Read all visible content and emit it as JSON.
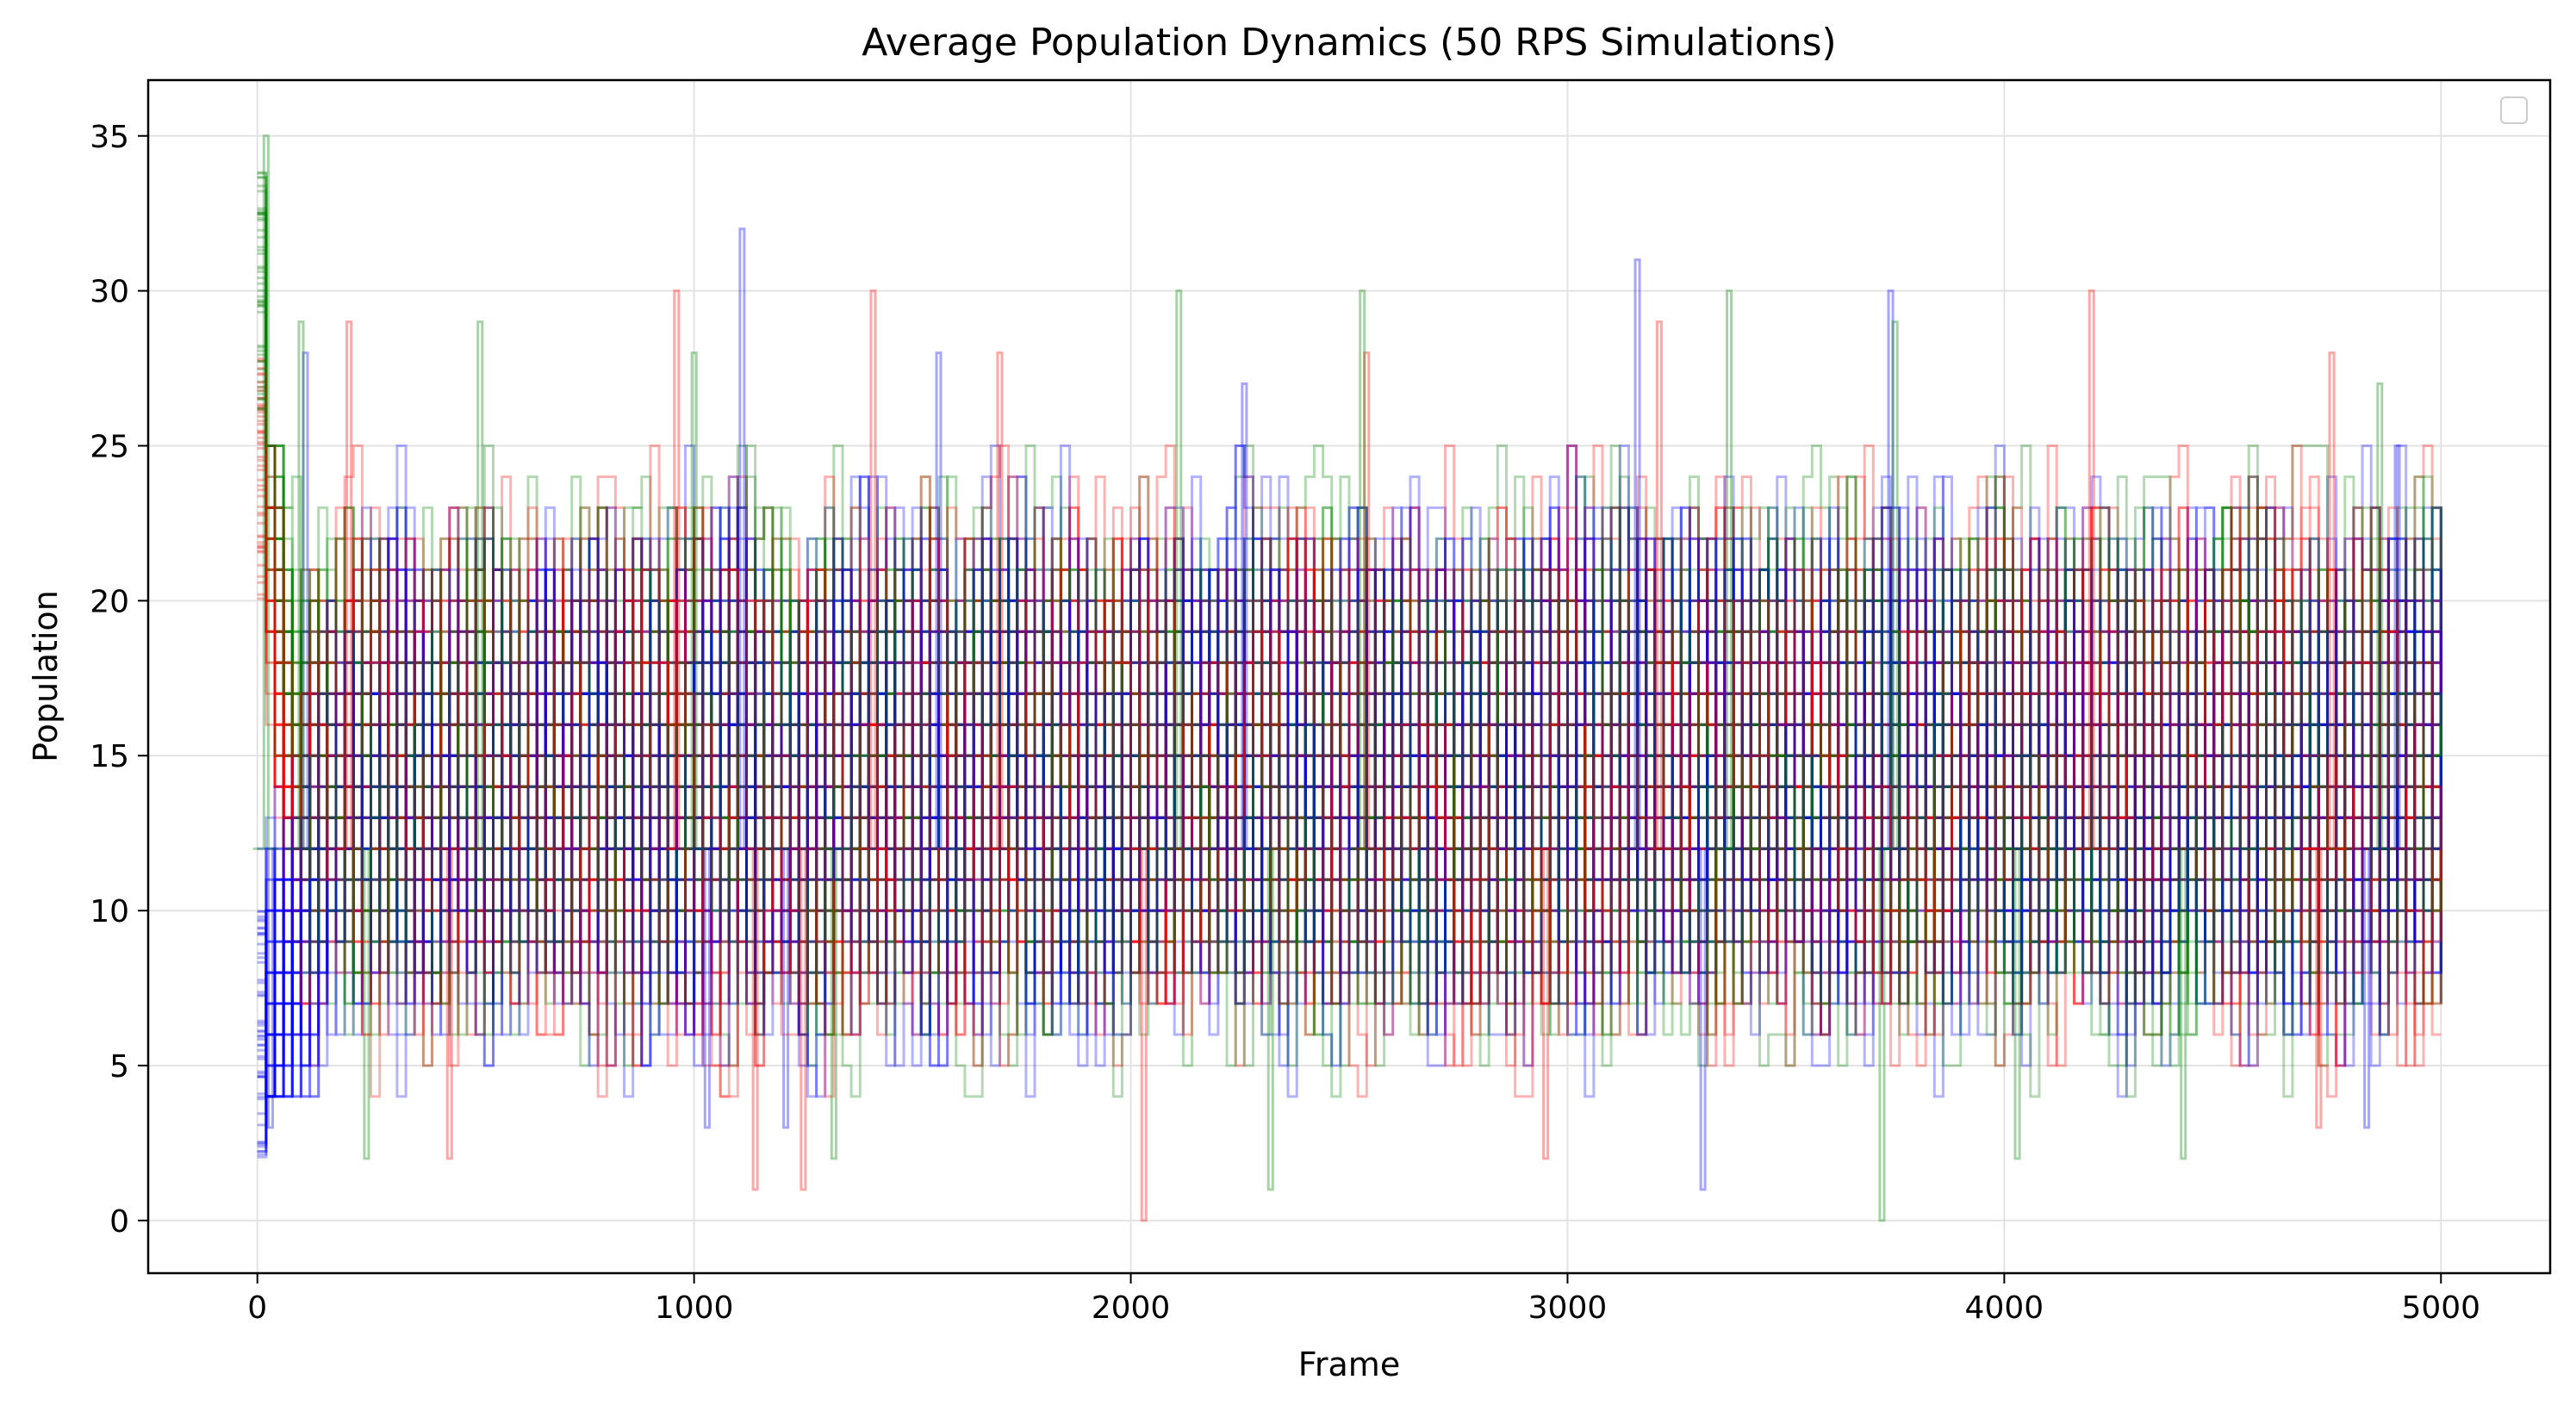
{
  "chart_data": {
    "type": "line",
    "title": "Average Population Dynamics (50 RPS Simulations)",
    "xlabel": "Frame",
    "ylabel": "Population",
    "xlim": [
      -250,
      5250
    ],
    "ylim": [
      -1.7,
      36.8
    ],
    "x_ticks": [
      0,
      1000,
      2000,
      3000,
      4000,
      5000
    ],
    "x_tick_labels": [
      "0",
      "1000",
      "2000",
      "3000",
      "4000",
      "5000"
    ],
    "y_ticks": [
      0,
      5,
      10,
      15,
      20,
      25,
      30,
      35
    ],
    "y_tick_labels": [
      "0",
      "5",
      "10",
      "15",
      "20",
      "25",
      "30",
      "35"
    ],
    "grid": true,
    "legend": "upper right (empty)",
    "simulations": 50,
    "frames": 5000,
    "colors": {
      "rock": "#ff0000",
      "paper": "#0000ff",
      "scissors": "#008000"
    },
    "series_alpha": 0.3,
    "series": [
      {
        "color": "red",
        "points": [
          [
            0,
            24
          ],
          [
            50,
            10
          ],
          [
            200,
            12
          ],
          [
            500,
            16
          ],
          [
            1000,
            14
          ],
          [
            1500,
            13
          ],
          [
            2000,
            15
          ],
          [
            2500,
            14
          ],
          [
            3000,
            12
          ],
          [
            3500,
            15
          ],
          [
            4000,
            13
          ],
          [
            4500,
            14
          ],
          [
            5000,
            15
          ]
        ],
        "range": [
          5,
          24
        ],
        "spikes_high": [
          [
            210,
            29
          ],
          [
            960,
            30
          ],
          [
            1410,
            30
          ],
          [
            1700,
            28
          ],
          [
            2540,
            28
          ],
          [
            3210,
            29
          ],
          [
            4200,
            30
          ],
          [
            4750,
            28
          ]
        ],
        "dips_low": [
          [
            440,
            2
          ],
          [
            1140,
            1
          ],
          [
            1250,
            1
          ],
          [
            2030,
            0
          ],
          [
            2950,
            2
          ],
          [
            4720,
            3
          ]
        ]
      },
      {
        "color": "blue",
        "points": [
          [
            0,
            6
          ],
          [
            50,
            9
          ],
          [
            200,
            13
          ],
          [
            500,
            15
          ],
          [
            1000,
            14
          ],
          [
            1500,
            13
          ],
          [
            2000,
            15
          ],
          [
            2500,
            14
          ],
          [
            3000,
            12
          ],
          [
            3500,
            15
          ],
          [
            4000,
            13
          ],
          [
            4500,
            14
          ],
          [
            5000,
            15
          ]
        ],
        "range": [
          5,
          24
        ],
        "spikes_high": [
          [
            110,
            28
          ],
          [
            1110,
            32
          ],
          [
            1560,
            28
          ],
          [
            2260,
            27
          ],
          [
            3160,
            31
          ],
          [
            3740,
            30
          ],
          [
            4900,
            25
          ]
        ],
        "dips_low": [
          [
            30,
            3
          ],
          [
            1030,
            3
          ],
          [
            1210,
            3
          ],
          [
            3310,
            1
          ],
          [
            4830,
            3
          ]
        ]
      },
      {
        "color": "green",
        "points": [
          [
            0,
            30
          ],
          [
            50,
            14
          ],
          [
            200,
            12
          ],
          [
            500,
            14
          ],
          [
            1000,
            15
          ],
          [
            1500,
            13
          ],
          [
            2000,
            14
          ],
          [
            2500,
            15
          ],
          [
            3000,
            13
          ],
          [
            3500,
            14
          ],
          [
            4000,
            12
          ],
          [
            4500,
            15
          ],
          [
            5000,
            14
          ]
        ],
        "range": [
          5,
          24
        ],
        "spikes_high": [
          [
            20,
            35
          ],
          [
            100,
            29
          ],
          [
            510,
            29
          ],
          [
            1000,
            28
          ],
          [
            2110,
            30
          ],
          [
            2530,
            30
          ],
          [
            3370,
            30
          ],
          [
            3750,
            29
          ],
          [
            4860,
            27
          ]
        ],
        "dips_low": [
          [
            250,
            2
          ],
          [
            1320,
            2
          ],
          [
            2320,
            1
          ],
          [
            3720,
            0
          ],
          [
            4030,
            2
          ],
          [
            4410,
            2
          ]
        ]
      }
    ]
  }
}
